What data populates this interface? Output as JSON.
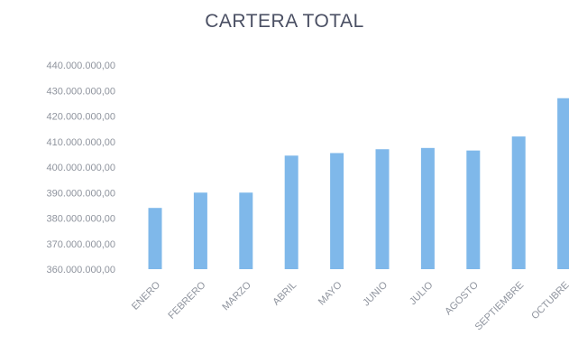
{
  "chart_data": {
    "type": "bar",
    "title": "CARTERA TOTAL",
    "xlabel": "",
    "ylabel": "",
    "categories": [
      "ENERO",
      "FEBRERO",
      "MARZO",
      "ABRIL",
      "MAYO",
      "JUNIO",
      "JULIO",
      "AGOSTO",
      "SEPTIEMBRE",
      "OCTUBRE"
    ],
    "values": [
      384000000,
      390000000,
      390000000,
      404500000,
      405500000,
      407000000,
      407500000,
      406500000,
      412000000,
      427000000
    ],
    "ylim": [
      360000000,
      440000000
    ],
    "y_ticks": [
      "360.000.000,00",
      "370.000.000,00",
      "380.000.000,00",
      "390.000.000,00",
      "400.000.000,00",
      "410.000.000,00",
      "420.000.000,00",
      "430.000.000,00",
      "440.000.000,00"
    ],
    "grid": false,
    "bar_color": "#7fb8ea"
  }
}
